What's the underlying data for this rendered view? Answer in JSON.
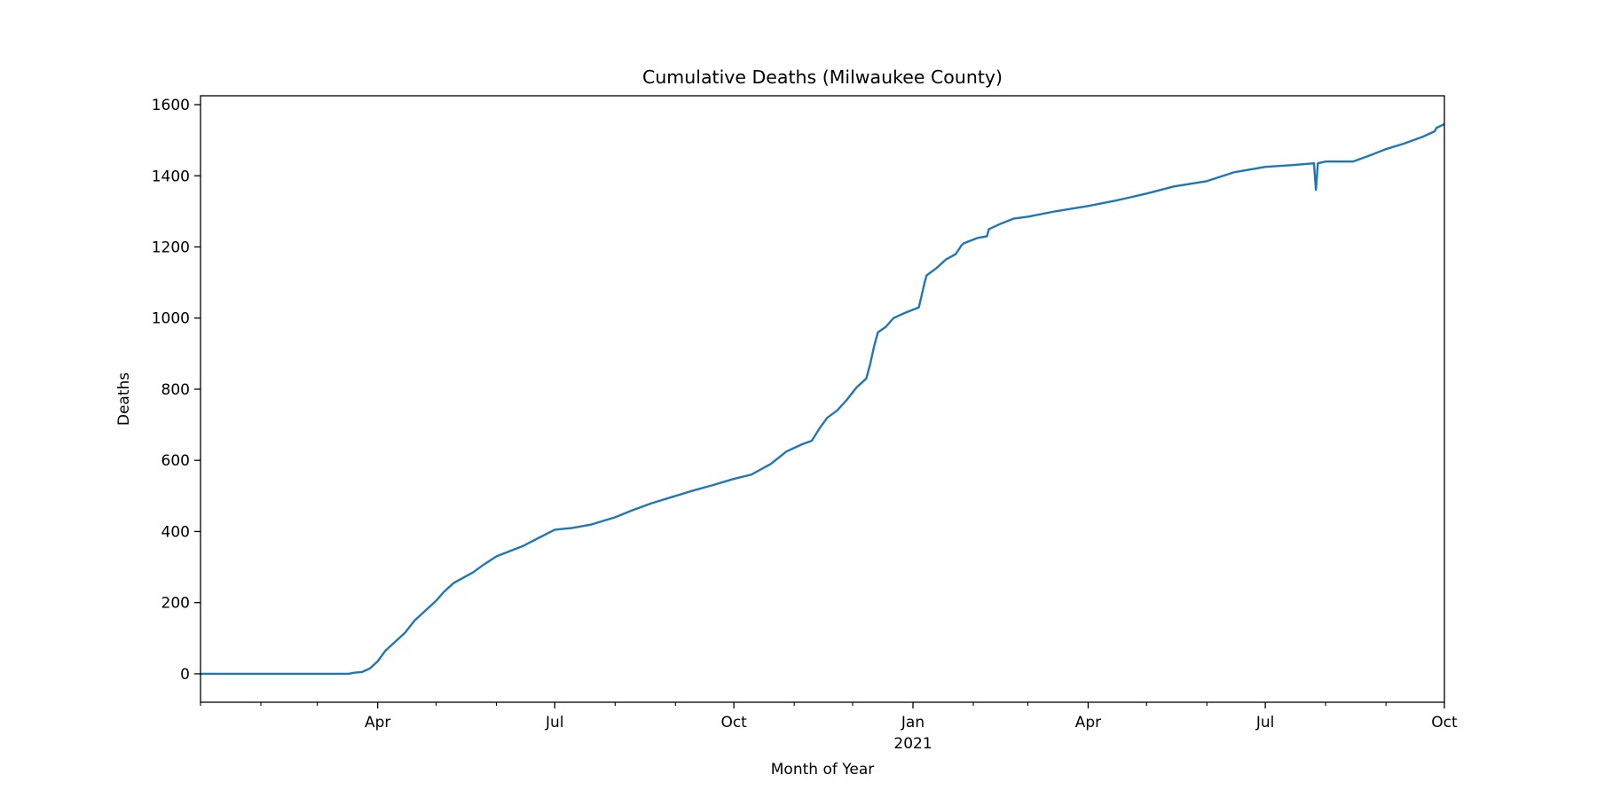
{
  "chart_data": {
    "type": "line",
    "title": "Cumulative Deaths (Milwaukee County)",
    "xlabel": "Month of Year",
    "ylabel": "Deaths",
    "xlim": [
      "2020-01-01",
      "2021-10-01"
    ],
    "ylim": [
      -80,
      1625
    ],
    "grid": false,
    "line_color": "#1f77b4",
    "y_ticks": [
      0,
      200,
      400,
      600,
      800,
      1000,
      1200,
      1400,
      1600
    ],
    "x_major_ticks": [
      {
        "date": "2020-04-01",
        "label": "Apr"
      },
      {
        "date": "2020-07-01",
        "label": "Jul"
      },
      {
        "date": "2020-10-01",
        "label": "Oct"
      },
      {
        "date": "2021-01-01",
        "label": "Jan"
      },
      {
        "date": "2021-04-01",
        "label": "Apr"
      },
      {
        "date": "2021-07-01",
        "label": "Jul"
      },
      {
        "date": "2021-10-01",
        "label": "Oct"
      }
    ],
    "x_minor_ticks": [
      "2020-01-01",
      "2020-02-01",
      "2020-03-01",
      "2020-05-01",
      "2020-06-01",
      "2020-08-01",
      "2020-09-01",
      "2020-11-01",
      "2020-12-01",
      "2021-02-01",
      "2021-03-01",
      "2021-05-01",
      "2021-06-01",
      "2021-08-01",
      "2021-09-01"
    ],
    "year_label": {
      "date": "2021-01-01",
      "label": "2021"
    },
    "series": [
      {
        "x": [
          "2020-01-01",
          "2020-02-01",
          "2020-03-01",
          "2020-03-17",
          "2020-03-20",
          "2020-03-24",
          "2020-03-28",
          "2020-04-01",
          "2020-04-05",
          "2020-04-10",
          "2020-04-15",
          "2020-04-20",
          "2020-04-25",
          "2020-05-01",
          "2020-05-05",
          "2020-05-10",
          "2020-05-15",
          "2020-05-20",
          "2020-05-25",
          "2020-06-01",
          "2020-06-08",
          "2020-06-15",
          "2020-06-22",
          "2020-07-01",
          "2020-07-10",
          "2020-07-20",
          "2020-08-01",
          "2020-08-10",
          "2020-08-20",
          "2020-09-01",
          "2020-09-10",
          "2020-09-20",
          "2020-10-01",
          "2020-10-10",
          "2020-10-20",
          "2020-10-28",
          "2020-11-05",
          "2020-11-10",
          "2020-11-14",
          "2020-11-18",
          "2020-11-23",
          "2020-11-28",
          "2020-12-03",
          "2020-12-08",
          "2020-12-10",
          "2020-12-12",
          "2020-12-14",
          "2020-12-18",
          "2020-12-22",
          "2020-12-28",
          "2021-01-04",
          "2021-01-07",
          "2021-01-08",
          "2021-01-13",
          "2021-01-18",
          "2021-01-23",
          "2021-01-26",
          "2021-01-27",
          "2021-02-03",
          "2021-02-08",
          "2021-02-09",
          "2021-02-15",
          "2021-02-22",
          "2021-03-01",
          "2021-03-15",
          "2021-04-01",
          "2021-04-15",
          "2021-05-01",
          "2021-05-15",
          "2021-06-01",
          "2021-06-15",
          "2021-07-01",
          "2021-07-15",
          "2021-07-26",
          "2021-07-27",
          "2021-07-28",
          "2021-08-01",
          "2021-08-15",
          "2021-08-25",
          "2021-09-01",
          "2021-09-10",
          "2021-09-15",
          "2021-09-20",
          "2021-09-26",
          "2021-09-27",
          "2021-10-01"
        ],
        "y": [
          0,
          0,
          0,
          0,
          3,
          5,
          15,
          35,
          65,
          90,
          115,
          150,
          175,
          205,
          230,
          255,
          270,
          285,
          305,
          330,
          345,
          360,
          380,
          405,
          410,
          420,
          440,
          460,
          480,
          500,
          515,
          530,
          548,
          560,
          590,
          625,
          645,
          655,
          690,
          720,
          740,
          770,
          805,
          830,
          870,
          920,
          960,
          975,
          1000,
          1015,
          1030,
          1100,
          1120,
          1140,
          1165,
          1180,
          1205,
          1210,
          1225,
          1230,
          1250,
          1265,
          1280,
          1285,
          1300,
          1315,
          1330,
          1350,
          1370,
          1385,
          1410,
          1425,
          1430,
          1435,
          1360,
          1435,
          1440,
          1440,
          1460,
          1475,
          1490,
          1500,
          1510,
          1525,
          1535,
          1545
        ]
      }
    ]
  }
}
